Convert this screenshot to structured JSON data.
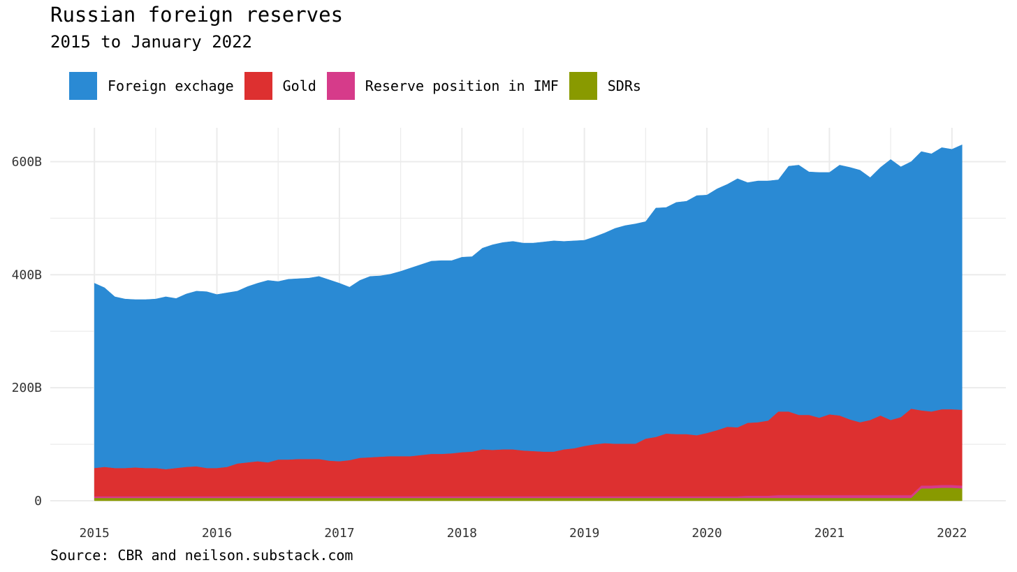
{
  "chart_data": {
    "type": "area",
    "stacked": true,
    "title": "Russian foreign reserves",
    "subtitle": "2015 to January 2022",
    "caption": "Source: CBR and neilson.substack.com",
    "xlabel": "",
    "ylabel": "",
    "xlim": [
      2014.64,
      2022.44
    ],
    "ylim": [
      0,
      660
    ],
    "x_ticks": [
      2015,
      2016,
      2017,
      2018,
      2019,
      2020,
      2021,
      2022
    ],
    "x_tick_labels": [
      "2015",
      "2016",
      "2017",
      "2018",
      "2019",
      "2020",
      "2021",
      "2022"
    ],
    "y_ticks": [
      0,
      200,
      400,
      600
    ],
    "y_tick_labels": [
      "0",
      "200B",
      "400B",
      "600B"
    ],
    "grid": true,
    "legend_position": "top-left",
    "x": [
      2015.0,
      2015.083,
      2015.167,
      2015.25,
      2015.333,
      2015.417,
      2015.5,
      2015.583,
      2015.667,
      2015.75,
      2015.833,
      2015.917,
      2016.0,
      2016.083,
      2016.167,
      2016.25,
      2016.333,
      2016.417,
      2016.5,
      2016.583,
      2016.667,
      2016.75,
      2016.833,
      2016.917,
      2017.0,
      2017.083,
      2017.167,
      2017.25,
      2017.333,
      2017.417,
      2017.5,
      2017.583,
      2017.667,
      2017.75,
      2017.833,
      2017.917,
      2018.0,
      2018.083,
      2018.167,
      2018.25,
      2018.333,
      2018.417,
      2018.5,
      2018.583,
      2018.667,
      2018.75,
      2018.833,
      2018.917,
      2019.0,
      2019.083,
      2019.167,
      2019.25,
      2019.333,
      2019.417,
      2019.5,
      2019.583,
      2019.667,
      2019.75,
      2019.833,
      2019.917,
      2020.0,
      2020.083,
      2020.167,
      2020.25,
      2020.333,
      2020.417,
      2020.5,
      2020.583,
      2020.667,
      2020.75,
      2020.833,
      2020.917,
      2021.0,
      2021.083,
      2021.167,
      2021.25,
      2021.333,
      2021.417,
      2021.5,
      2021.583,
      2021.667,
      2021.75,
      2021.833,
      2021.917,
      2022.0,
      2022.083
    ],
    "totals": [
      385,
      377,
      361,
      357,
      356,
      356,
      357,
      361,
      358,
      366,
      371,
      370,
      365,
      368,
      371,
      379,
      385,
      390,
      388,
      392,
      393,
      394,
      397,
      391,
      385,
      378,
      390,
      397,
      398,
      401,
      406,
      412,
      418,
      424,
      425,
      425,
      431,
      432,
      447,
      453,
      457,
      459,
      456,
      456,
      458,
      460,
      459,
      460,
      461,
      467,
      474,
      482,
      487,
      490,
      494,
      518,
      519,
      528,
      530,
      540,
      541,
      552,
      560,
      570,
      563,
      566,
      566,
      568,
      592,
      594,
      582,
      581,
      581,
      594,
      590,
      585,
      572,
      590,
      604,
      591,
      600,
      618,
      614,
      625,
      622,
      630
    ],
    "series": [
      {
        "name": "SDRs",
        "color": "#899a00",
        "values": [
          5,
          5,
          5,
          5,
          5,
          5,
          5,
          5,
          5,
          5,
          5,
          5,
          5,
          5,
          5,
          5,
          5,
          5,
          5,
          5,
          5,
          5,
          5,
          5,
          5,
          5,
          5,
          5,
          5,
          5,
          5,
          5,
          5,
          5,
          5,
          5,
          5,
          5,
          5,
          5,
          5,
          5,
          5,
          5,
          5,
          5,
          5,
          5,
          5,
          5,
          5,
          5,
          5,
          5,
          5,
          5,
          5,
          5,
          5,
          5,
          5,
          5,
          5,
          5,
          5,
          5,
          5,
          5,
          5,
          5,
          5,
          5,
          5,
          5,
          5,
          5,
          5,
          5,
          5,
          5,
          5,
          22,
          22,
          23,
          23,
          22
        ]
      },
      {
        "name": "Reserve position in IMF",
        "color": "#d63b8a",
        "values": [
          3,
          3,
          3,
          3,
          3,
          3,
          3,
          3,
          3,
          3,
          3,
          3,
          3,
          3,
          3,
          3,
          3,
          3,
          3,
          3,
          3,
          3,
          3,
          3,
          3,
          3,
          3,
          3,
          3,
          3,
          3,
          3,
          3,
          3,
          3,
          3,
          3,
          3,
          3,
          3,
          3,
          3,
          3,
          3,
          3,
          3,
          3,
          3,
          3,
          3,
          3,
          3,
          3,
          3,
          3,
          3,
          3,
          3,
          3,
          3,
          3,
          3,
          3,
          3,
          4,
          4,
          4,
          5,
          5,
          5,
          5,
          5,
          5,
          5,
          5,
          5,
          5,
          5,
          5,
          5,
          5,
          5,
          5,
          5,
          5,
          5
        ]
      },
      {
        "name": "Gold",
        "color": "#dd3030",
        "values": [
          50,
          52,
          50,
          50,
          51,
          50,
          50,
          48,
          50,
          52,
          53,
          50,
          50,
          52,
          58,
          60,
          62,
          60,
          65,
          65,
          66,
          66,
          66,
          63,
          62,
          64,
          68,
          69,
          70,
          71,
          71,
          71,
          73,
          75,
          75,
          76,
          78,
          79,
          83,
          82,
          83,
          83,
          81,
          80,
          79,
          79,
          83,
          85,
          89,
          92,
          94,
          93,
          93,
          93,
          102,
          105,
          111,
          110,
          110,
          108,
          112,
          117,
          123,
          122,
          129,
          130,
          133,
          148,
          148,
          142,
          142,
          137,
          143,
          141,
          134,
          129,
          133,
          141,
          133,
          138,
          153,
          133,
          131,
          134,
          134,
          134
        ]
      },
      {
        "name": "Foreign exchage",
        "color": "#2a8ad4",
        "values": [
          327,
          317,
          303,
          299,
          297,
          298,
          299,
          305,
          300,
          306,
          310,
          312,
          307,
          308,
          305,
          311,
          315,
          322,
          315,
          319,
          319,
          320,
          323,
          320,
          315,
          306,
          314,
          320,
          320,
          322,
          327,
          333,
          337,
          341,
          342,
          341,
          345,
          345,
          356,
          363,
          366,
          368,
          367,
          368,
          371,
          373,
          368,
          367,
          364,
          367,
          372,
          381,
          386,
          389,
          384,
          405,
          400,
          410,
          412,
          424,
          421,
          427,
          429,
          440,
          425,
          427,
          424,
          410,
          434,
          442,
          430,
          434,
          428,
          443,
          446,
          446,
          429,
          439,
          461,
          443,
          437,
          458,
          456,
          463,
          460,
          469
        ]
      }
    ]
  },
  "legend_order": [
    "Foreign exchage",
    "Gold",
    "Reserve position in IMF",
    "SDRs"
  ]
}
